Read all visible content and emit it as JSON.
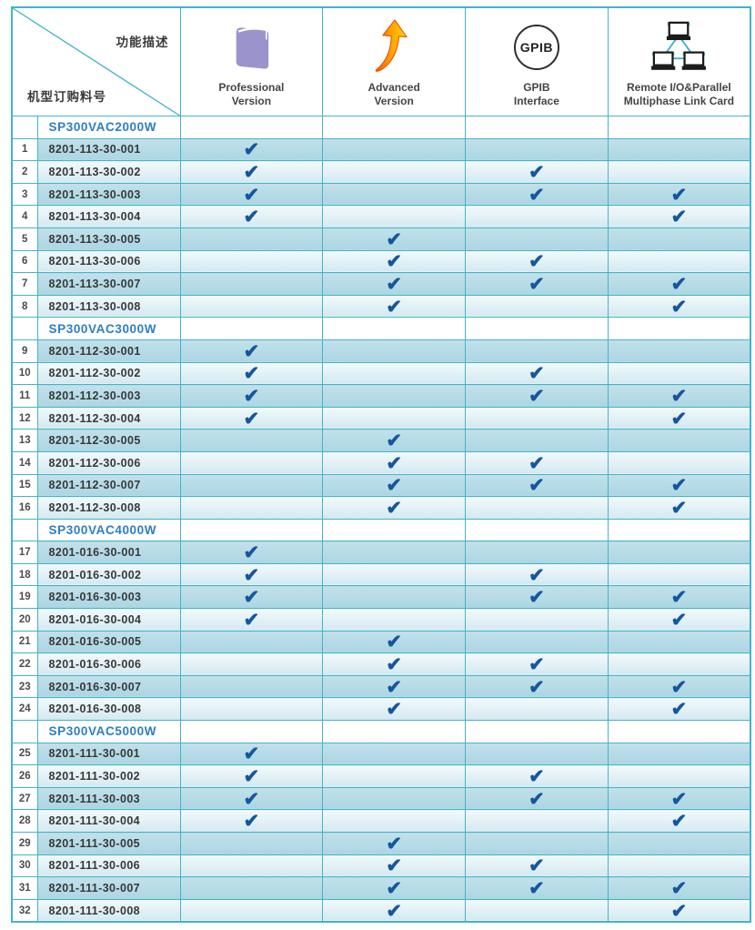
{
  "header": {
    "diagonal": {
      "top_label": "功能描述",
      "bottom_label": "机型订购料号"
    },
    "columns": [
      {
        "id": "professional",
        "icon": "book-icon",
        "label_lines": [
          "Professional",
          "Version"
        ]
      },
      {
        "id": "advanced",
        "icon": "growth-arrow-icon",
        "label_lines": [
          "Advanced",
          "Version"
        ]
      },
      {
        "id": "gpib",
        "icon": "gpib-circle-icon",
        "icon_text": "GPIB",
        "label_lines": [
          "GPIB",
          "Interface"
        ]
      },
      {
        "id": "remote",
        "icon": "network-computers-icon",
        "label_lines": [
          "Remote I/O&Parallel",
          "Multiphase Link Card"
        ]
      }
    ]
  },
  "check_glyph": "✔",
  "colors": {
    "border_teal": "#43b4c8",
    "row_dark": "#abd6e3",
    "row_light_top": "#f2f9fb",
    "row_light_bottom": "#d3e9f0",
    "check_blue": "#15569e",
    "model_blue": "#2d7ec2",
    "book_purple": "#9b94cc",
    "arrow_orange": "#e8570f",
    "arrow_yellow": "#ffd800",
    "network_teal": "#3fb4c8"
  },
  "table": {
    "sections": [
      {
        "model": "SP300VAC2000W",
        "rows": [
          {
            "no": "1",
            "part": "8201-113-30-001",
            "checks": [
              true,
              false,
              false,
              false
            ]
          },
          {
            "no": "2",
            "part": "8201-113-30-002",
            "checks": [
              true,
              false,
              true,
              false
            ]
          },
          {
            "no": "3",
            "part": "8201-113-30-003",
            "checks": [
              true,
              false,
              true,
              true
            ]
          },
          {
            "no": "4",
            "part": "8201-113-30-004",
            "checks": [
              true,
              false,
              false,
              true
            ]
          },
          {
            "no": "5",
            "part": "8201-113-30-005",
            "checks": [
              false,
              true,
              false,
              false
            ]
          },
          {
            "no": "6",
            "part": "8201-113-30-006",
            "checks": [
              false,
              true,
              true,
              false
            ]
          },
          {
            "no": "7",
            "part": "8201-113-30-007",
            "checks": [
              false,
              true,
              true,
              true
            ]
          },
          {
            "no": "8",
            "part": "8201-113-30-008",
            "checks": [
              false,
              true,
              false,
              true
            ]
          }
        ]
      },
      {
        "model": "SP300VAC3000W",
        "rows": [
          {
            "no": "9",
            "part": "8201-112-30-001",
            "checks": [
              true,
              false,
              false,
              false
            ]
          },
          {
            "no": "10",
            "part": "8201-112-30-002",
            "checks": [
              true,
              false,
              true,
              false
            ]
          },
          {
            "no": "11",
            "part": "8201-112-30-003",
            "checks": [
              true,
              false,
              true,
              true
            ]
          },
          {
            "no": "12",
            "part": "8201-112-30-004",
            "checks": [
              true,
              false,
              false,
              true
            ]
          },
          {
            "no": "13",
            "part": "8201-112-30-005",
            "checks": [
              false,
              true,
              false,
              false
            ]
          },
          {
            "no": "14",
            "part": "8201-112-30-006",
            "checks": [
              false,
              true,
              true,
              false
            ]
          },
          {
            "no": "15",
            "part": "8201-112-30-007",
            "checks": [
              false,
              true,
              true,
              true
            ]
          },
          {
            "no": "16",
            "part": "8201-112-30-008",
            "checks": [
              false,
              true,
              false,
              true
            ]
          }
        ]
      },
      {
        "model": "SP300VAC4000W",
        "rows": [
          {
            "no": "17",
            "part": "8201-016-30-001",
            "checks": [
              true,
              false,
              false,
              false
            ]
          },
          {
            "no": "18",
            "part": "8201-016-30-002",
            "checks": [
              true,
              false,
              true,
              false
            ]
          },
          {
            "no": "19",
            "part": "8201-016-30-003",
            "checks": [
              true,
              false,
              true,
              true
            ]
          },
          {
            "no": "20",
            "part": "8201-016-30-004",
            "checks": [
              true,
              false,
              false,
              true
            ]
          },
          {
            "no": "21",
            "part": "8201-016-30-005",
            "checks": [
              false,
              true,
              false,
              false
            ]
          },
          {
            "no": "22",
            "part": "8201-016-30-006",
            "checks": [
              false,
              true,
              true,
              false
            ]
          },
          {
            "no": "23",
            "part": "8201-016-30-007",
            "checks": [
              false,
              true,
              true,
              true
            ]
          },
          {
            "no": "24",
            "part": "8201-016-30-008",
            "checks": [
              false,
              true,
              false,
              true
            ]
          }
        ]
      },
      {
        "model": "SP300VAC5000W",
        "rows": [
          {
            "no": "25",
            "part": "8201-111-30-001",
            "checks": [
              true,
              false,
              false,
              false
            ]
          },
          {
            "no": "26",
            "part": "8201-111-30-002",
            "checks": [
              true,
              false,
              true,
              false
            ]
          },
          {
            "no": "27",
            "part": "8201-111-30-003",
            "checks": [
              true,
              false,
              true,
              true
            ]
          },
          {
            "no": "28",
            "part": "8201-111-30-004",
            "checks": [
              true,
              false,
              false,
              true
            ]
          },
          {
            "no": "29",
            "part": "8201-111-30-005",
            "checks": [
              false,
              true,
              false,
              false
            ]
          },
          {
            "no": "30",
            "part": "8201-111-30-006",
            "checks": [
              false,
              true,
              true,
              false
            ]
          },
          {
            "no": "31",
            "part": "8201-111-30-007",
            "checks": [
              false,
              true,
              true,
              true
            ]
          },
          {
            "no": "32",
            "part": "8201-111-30-008",
            "checks": [
              false,
              true,
              false,
              true
            ]
          }
        ]
      }
    ]
  }
}
